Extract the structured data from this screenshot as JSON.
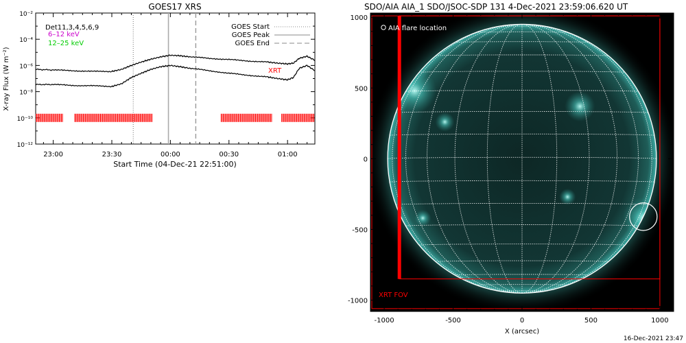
{
  "chart_data": [
    {
      "type": "line",
      "title": "GOES17 XRS",
      "xlabel": "Start Time (04-Dec-21 22:51:00)",
      "ylabel": "X-ray Flux (W m⁻²)",
      "x_tick_labels": [
        "23:00",
        "23:30",
        "00:00",
        "00:30",
        "01:00"
      ],
      "x_tick_times": [
        "2021-12-04 23:00",
        "2021-12-04 23:30",
        "2021-12-05 00:00",
        "2021-12-05 00:30",
        "2021-12-05 01:00"
      ],
      "xlim": [
        "2021-12-04 22:51",
        "2021-12-05 01:14"
      ],
      "y_scale": "log",
      "ylim": [
        1e-12,
        0.01
      ],
      "y_tick_labels": [
        "10⁻¹²",
        "10⁻¹⁰",
        "10⁻⁸",
        "10⁻⁶",
        "10⁻⁴",
        "10⁻²"
      ],
      "left_legend": [
        "Det11,3,4,5,6,9",
        "6–12 keV",
        "12–25 keV"
      ],
      "left_legend_colors": [
        "#000000",
        "#cc00cc",
        "#00cc00"
      ],
      "right_legend": [
        "GOES Start",
        "GOES Peak",
        "GOES End"
      ],
      "annotation": "XRT",
      "markers": {
        "goes_start": "2021-12-04 23:41",
        "goes_peak": "2021-12-04 23:59",
        "goes_end": "2021-12-05 00:13"
      },
      "series": [
        {
          "name": "",
          "color": "#000000",
          "x": [
            "22:51",
            "23:00",
            "23:10",
            "23:20",
            "23:30",
            "23:35",
            "23:40",
            "23:45",
            "23:50",
            "23:55",
            "00:00",
            "00:05",
            "00:10",
            "00:20",
            "00:30",
            "00:40",
            "00:50",
            "00:55",
            "01:00",
            "01:03",
            "01:06",
            "01:10",
            "01:14"
          ],
          "y": [
            5e-07,
            4.5e-07,
            4e-07,
            3.5e-07,
            3.5e-07,
            5e-07,
            1e-06,
            1.8e-06,
            3e-06,
            4.5e-06,
            6e-06,
            5.5e-06,
            4.5e-06,
            3.5e-06,
            2.8e-06,
            2.2e-06,
            1.8e-06,
            1.5e-06,
            1.3e-06,
            1.5e-06,
            3.5e-06,
            5e-06,
            2.5e-06
          ]
        },
        {
          "name": "",
          "color": "#000000",
          "x": [
            "22:51",
            "23:00",
            "23:10",
            "23:20",
            "23:30",
            "23:35",
            "23:40",
            "23:45",
            "23:50",
            "23:55",
            "00:00",
            "00:05",
            "00:10",
            "00:20",
            "00:30",
            "00:40",
            "00:50",
            "00:55",
            "01:00",
            "01:03",
            "01:06",
            "01:10",
            "01:14"
          ],
          "y": [
            3.5e-08,
            3.5e-08,
            3e-08,
            2.8e-08,
            2.5e-08,
            4e-08,
            1.2e-07,
            2.5e-07,
            5e-07,
            8e-07,
            1e-06,
            8e-07,
            6e-07,
            4e-07,
            2.5e-07,
            1.8e-07,
            1.3e-07,
            1e-07,
            8e-08,
            1.2e-07,
            6e-07,
            1e-06,
            4e-07
          ]
        }
      ],
      "xrt_coverage": [
        [
          "22:51",
          "23:05"
        ],
        [
          "23:11",
          "23:51"
        ],
        [
          "00:26",
          "00:52"
        ],
        [
          "00:57",
          "01:14"
        ]
      ],
      "xrt_level": 1e-10
    },
    {
      "type": "scatter",
      "title": "SDO/AIA AIA_1 SDO/JSOC-SDP 131  4-Dec-2021 23:59:06.620 UT",
      "xlabel": "X (arcsec)",
      "ylabel": "",
      "xlim": [
        -1100,
        1100
      ],
      "ylim": [
        -1080,
        1030
      ],
      "x_ticks": [
        -1000,
        -500,
        0,
        500,
        1000
      ],
      "y_ticks": [
        -1000,
        -500,
        0,
        500,
        1000
      ],
      "legend": "AIA flare location",
      "annotation": "XRT FOV",
      "solar_radius_arcsec": 975,
      "flare_location": {
        "x": 880,
        "y": -410,
        "radius": 100
      },
      "xrt_fov": {
        "x_min": -1090,
        "x_max": 1000,
        "y_min": -1060,
        "y_max": 1010
      },
      "xrt_fov_inner": {
        "x_left": -890,
        "y_bottom": -850
      },
      "bright_regions": [
        {
          "x": 900,
          "y": -430,
          "r": 60
        },
        {
          "x": 880,
          "y": -420,
          "r": 150
        },
        {
          "x": -780,
          "y": 480,
          "r": 160
        },
        {
          "x": 420,
          "y": 370,
          "r": 110
        },
        {
          "x": -560,
          "y": 260,
          "r": 70
        },
        {
          "x": 330,
          "y": -270,
          "r": 60
        },
        {
          "x": -720,
          "y": -420,
          "r": 60
        }
      ],
      "grid": true,
      "colors": {
        "disk": "#0e2a2a",
        "limb": "#3aa9a2",
        "grid": "#ffffff",
        "fov": "#ff0000",
        "flare": "#9ffff5"
      }
    }
  ],
  "footer_timestamp": "16-Dec-2021 23:47"
}
